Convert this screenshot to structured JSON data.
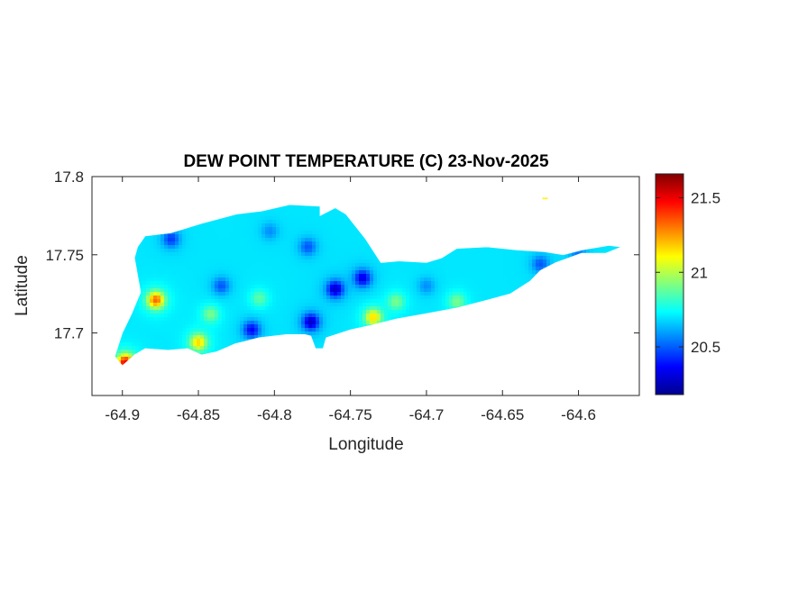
{
  "chart_data": {
    "type": "heatmap",
    "title": "DEW POINT TEMPERATURE (C) 23-Nov-2025",
    "xlabel": "Longitude",
    "ylabel": "Latitude",
    "xlim": [
      -64.92,
      -64.56
    ],
    "ylim": [
      17.66,
      17.8
    ],
    "xticks": [
      -64.9,
      -64.85,
      -64.8,
      -64.75,
      -64.7,
      -64.65,
      -64.6
    ],
    "xtick_labels": [
      "-64.9",
      "-64.85",
      "-64.8",
      "-64.75",
      "-64.7",
      "-64.65",
      "-64.6"
    ],
    "yticks": [
      17.7,
      17.75,
      17.8
    ],
    "ytick_labels": [
      "17.7",
      "17.75",
      "17.8"
    ],
    "colorbar": {
      "colormap": "jet",
      "range": [
        20.18,
        21.66
      ],
      "ticks": [
        20.5,
        21,
        21.5
      ],
      "tick_labels": [
        "20.5",
        "21",
        "21.5"
      ]
    },
    "land_outline_lonlat": [
      [
        -64.9,
        17.679
      ],
      [
        -64.892,
        17.686
      ],
      [
        -64.885,
        17.69
      ],
      [
        -64.87,
        17.689
      ],
      [
        -64.857,
        17.69
      ],
      [
        -64.848,
        17.686
      ],
      [
        -64.838,
        17.688
      ],
      [
        -64.826,
        17.693
      ],
      [
        -64.81,
        17.697
      ],
      [
        -64.792,
        17.699
      ],
      [
        -64.78,
        17.699
      ],
      [
        -64.776,
        17.698
      ],
      [
        -64.773,
        17.69
      ],
      [
        -64.768,
        17.69
      ],
      [
        -64.766,
        17.697
      ],
      [
        -64.75,
        17.702
      ],
      [
        -64.736,
        17.705
      ],
      [
        -64.72,
        17.709
      ],
      [
        -64.702,
        17.712
      ],
      [
        -64.68,
        17.716
      ],
      [
        -64.66,
        17.721
      ],
      [
        -64.645,
        17.725
      ],
      [
        -64.632,
        17.733
      ],
      [
        -64.625,
        17.74
      ],
      [
        -64.615,
        17.745
      ],
      [
        -64.598,
        17.751
      ],
      [
        -64.582,
        17.751
      ],
      [
        -64.572,
        17.755
      ],
      [
        -64.58,
        17.756
      ],
      [
        -64.598,
        17.753
      ],
      [
        -64.61,
        17.75
      ],
      [
        -64.623,
        17.752
      ],
      [
        -64.64,
        17.753
      ],
      [
        -64.66,
        17.755
      ],
      [
        -64.68,
        17.754
      ],
      [
        -64.69,
        17.748
      ],
      [
        -64.7,
        17.745
      ],
      [
        -64.718,
        17.746
      ],
      [
        -64.73,
        17.745
      ],
      [
        -64.74,
        17.76
      ],
      [
        -64.753,
        17.776
      ],
      [
        -64.76,
        17.78
      ],
      [
        -64.77,
        17.775
      ],
      [
        -64.77,
        17.781
      ],
      [
        -64.79,
        17.782
      ],
      [
        -64.808,
        17.778
      ],
      [
        -64.825,
        17.776
      ],
      [
        -64.848,
        17.77
      ],
      [
        -64.868,
        17.764
      ],
      [
        -64.885,
        17.762
      ],
      [
        -64.89,
        17.755
      ],
      [
        -64.892,
        17.748
      ],
      [
        -64.888,
        17.726
      ],
      [
        -64.894,
        17.712
      ],
      [
        -64.9,
        17.7
      ],
      [
        -64.905,
        17.685
      ]
    ],
    "islet_lonlat": [
      -64.622,
      17.786
    ],
    "field_sources": [
      {
        "lon": -64.868,
        "lat": 17.76,
        "value": 20.4
      },
      {
        "lon": -64.835,
        "lat": 17.73,
        "value": 20.45
      },
      {
        "lon": -64.803,
        "lat": 17.765,
        "value": 20.55
      },
      {
        "lon": -64.778,
        "lat": 17.755,
        "value": 20.45
      },
      {
        "lon": -64.76,
        "lat": 17.728,
        "value": 20.2
      },
      {
        "lon": -64.742,
        "lat": 17.735,
        "value": 20.25
      },
      {
        "lon": -64.776,
        "lat": 17.707,
        "value": 20.2
      },
      {
        "lon": -64.815,
        "lat": 17.702,
        "value": 20.3
      },
      {
        "lon": -64.7,
        "lat": 17.73,
        "value": 20.55
      },
      {
        "lon": -64.625,
        "lat": 17.744,
        "value": 20.45
      },
      {
        "lon": -64.6,
        "lat": 17.75,
        "value": 20.5
      },
      {
        "lon": -64.878,
        "lat": 17.721,
        "value": 21.45
      },
      {
        "lon": -64.85,
        "lat": 17.694,
        "value": 21.25
      },
      {
        "lon": -64.735,
        "lat": 17.71,
        "value": 21.25
      },
      {
        "lon": -64.898,
        "lat": 17.681,
        "value": 21.65
      },
      {
        "lon": -64.68,
        "lat": 17.72,
        "value": 20.95
      },
      {
        "lon": -64.842,
        "lat": 17.712,
        "value": 20.95
      },
      {
        "lon": -64.81,
        "lat": 17.722,
        "value": 20.9
      },
      {
        "lon": -64.72,
        "lat": 17.72,
        "value": 20.95
      }
    ],
    "field_background": 20.7
  }
}
